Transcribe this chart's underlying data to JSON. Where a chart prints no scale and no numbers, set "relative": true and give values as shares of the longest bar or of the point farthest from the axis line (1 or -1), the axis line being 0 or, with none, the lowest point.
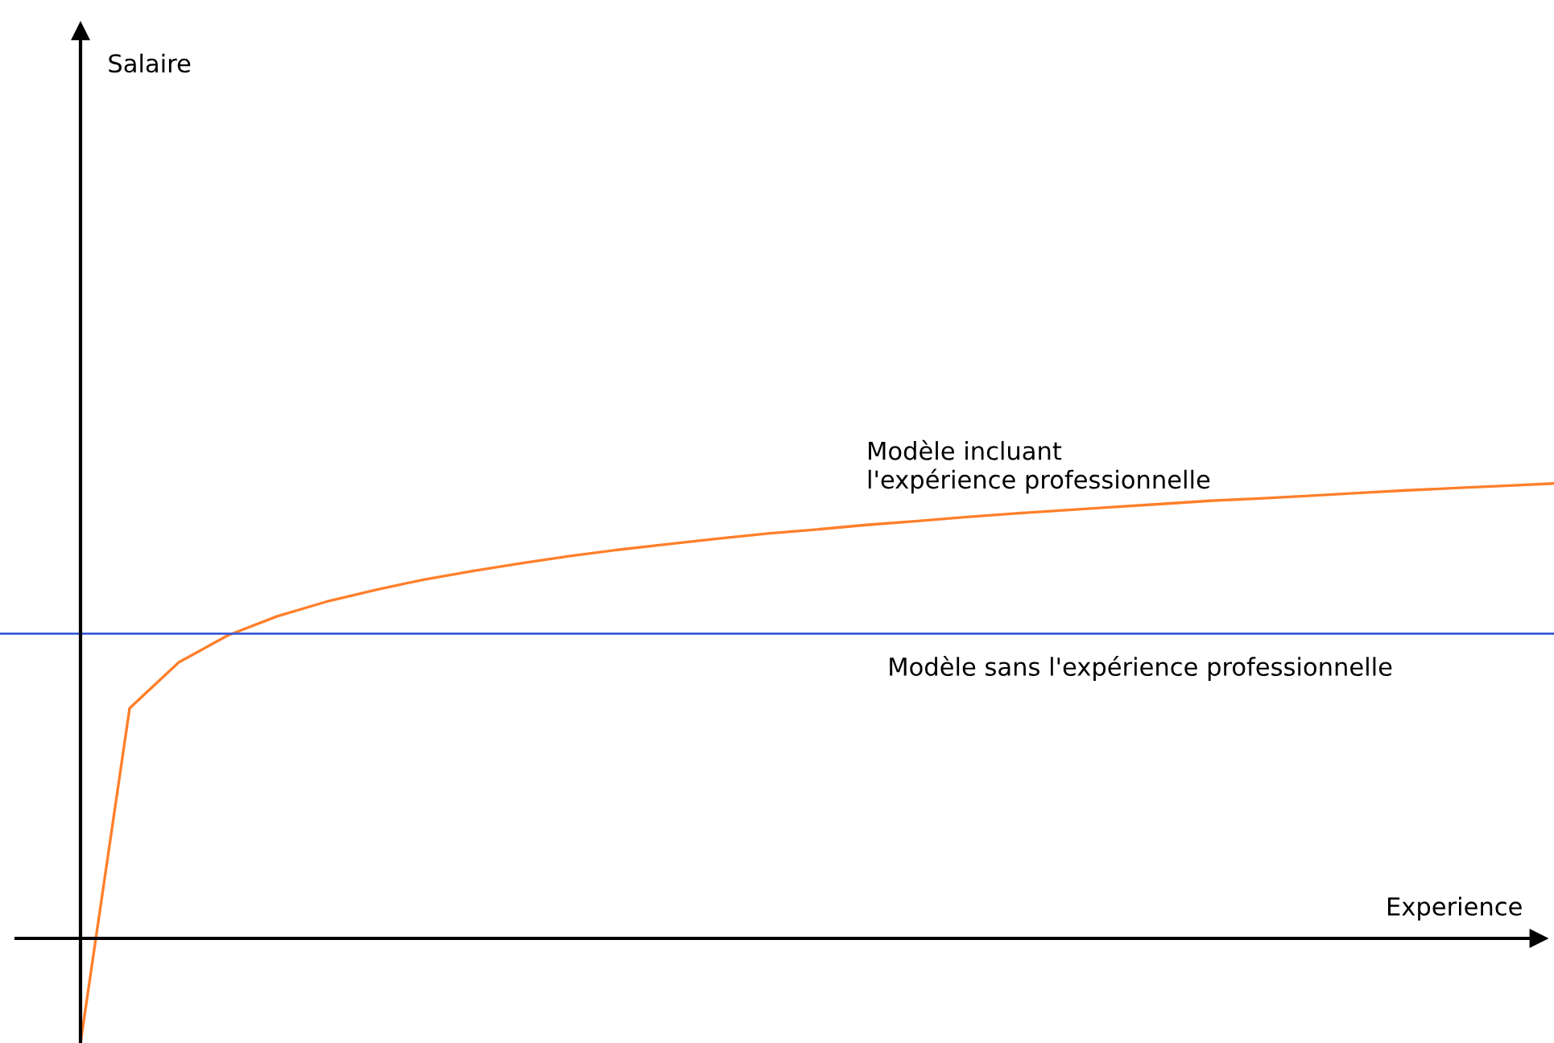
{
  "chart_data": {
    "type": "line",
    "relative": true,
    "annotations": [
      "Salaire",
      "Experience"
    ],
    "categories": [
      null,
      null,
      null,
      null,
      null,
      null,
      null,
      null,
      null,
      null,
      null,
      null,
      null,
      null,
      null,
      null,
      null,
      null,
      null,
      null,
      null,
      null,
      null,
      null,
      null,
      null,
      null,
      null,
      null,
      null,
      null
    ],
    "series": [
      {
        "name": "Modèle incluant\nl'expérience professionnelle",
        "color": "#ff7f2a",
        "values": [
          -0.23,
          0.506,
          0.607,
          0.666,
          0.708,
          0.74,
          0.766,
          0.789,
          0.808,
          0.825,
          0.841,
          0.855,
          0.867,
          0.879,
          0.89,
          0.899,
          0.909,
          0.917,
          0.926,
          0.934,
          0.941,
          0.948,
          0.955,
          0.962,
          0.967,
          0.973,
          0.979,
          0.985,
          0.99,
          0.995,
          1.0
        ]
      }
    ],
    "ref_lines": [
      {
        "axis": "y",
        "value": 0.67,
        "label": "Modèle sans l'expérience professionnelle",
        "color": "#3b5bdb"
      }
    ],
    "legend": false,
    "marker": "none",
    "line_style": "solid"
  }
}
